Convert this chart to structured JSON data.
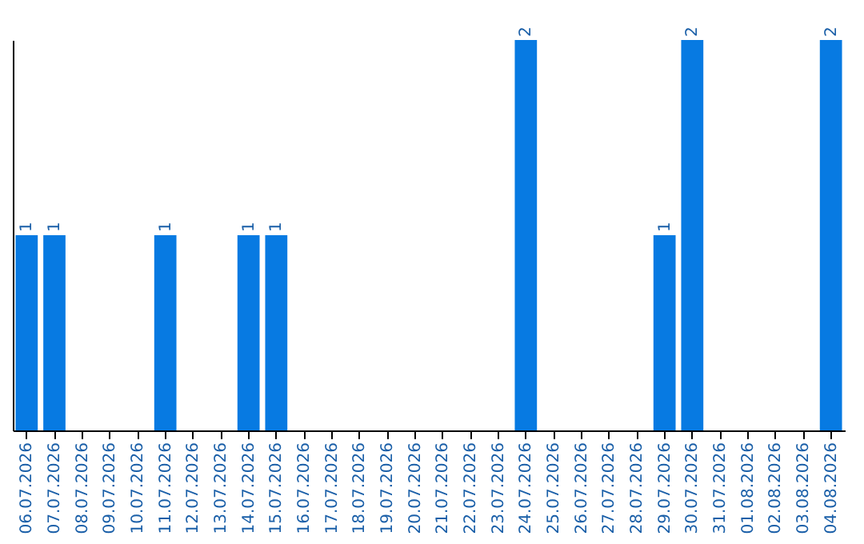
{
  "chart_data": {
    "type": "bar",
    "categories": [
      "06.07.2026",
      "07.07.2026",
      "08.07.2026",
      "09.07.2026",
      "10.07.2026",
      "11.07.2026",
      "12.07.2026",
      "13.07.2026",
      "14.07.2026",
      "15.07.2026",
      "16.07.2026",
      "17.07.2026",
      "18.07.2026",
      "19.07.2026",
      "20.07.2026",
      "21.07.2026",
      "22.07.2026",
      "23.07.2026",
      "24.07.2026",
      "25.07.2026",
      "26.07.2026",
      "27.07.2026",
      "28.07.2026",
      "29.07.2026",
      "30.07.2026",
      "31.07.2026",
      "01.08.2026",
      "02.08.2026",
      "03.08.2026",
      "04.08.2026"
    ],
    "values": [
      1,
      1,
      0,
      0,
      0,
      1,
      0,
      0,
      1,
      1,
      0,
      0,
      0,
      0,
      0,
      0,
      0,
      0,
      2,
      0,
      0,
      0,
      0,
      1,
      2,
      0,
      0,
      0,
      0,
      2
    ],
    "value_labels": [
      "1",
      "1",
      null,
      null,
      null,
      "1",
      null,
      null,
      "1",
      "1",
      null,
      null,
      null,
      null,
      null,
      null,
      null,
      null,
      "2",
      null,
      null,
      null,
      null,
      "1",
      "2",
      null,
      null,
      null,
      null,
      "2"
    ],
    "color": "#077ae2",
    "grid": false,
    "tick_labels": "x"
  }
}
